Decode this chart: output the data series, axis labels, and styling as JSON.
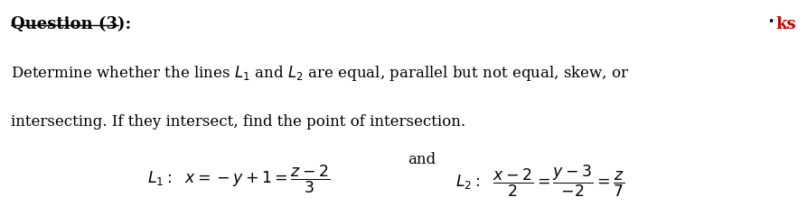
{
  "title": "Question (3):",
  "body_line1": "Determine whether the lines $\\mathit{L}_1$ and $\\mathit{L}_2$ are equal, parallel but not equal, skew, or",
  "body_line2": "intersecting. If they intersect, find the point of intersection.",
  "eq_L1": "$L_1\\mathrm{:}\\ \\ x = -y+1 = \\dfrac{z-2}{3}$",
  "eq_and": "and",
  "eq_L2": "$L_2\\mathrm{:}\\ \\ \\dfrac{x-2}{2} = \\dfrac{y-3}{-2} = \\dfrac{z}{7}$",
  "corner_text": "ks",
  "bg_color": "#ffffff",
  "text_color": "#000000",
  "title_color": "#000000",
  "corner_color": "#cc0000"
}
